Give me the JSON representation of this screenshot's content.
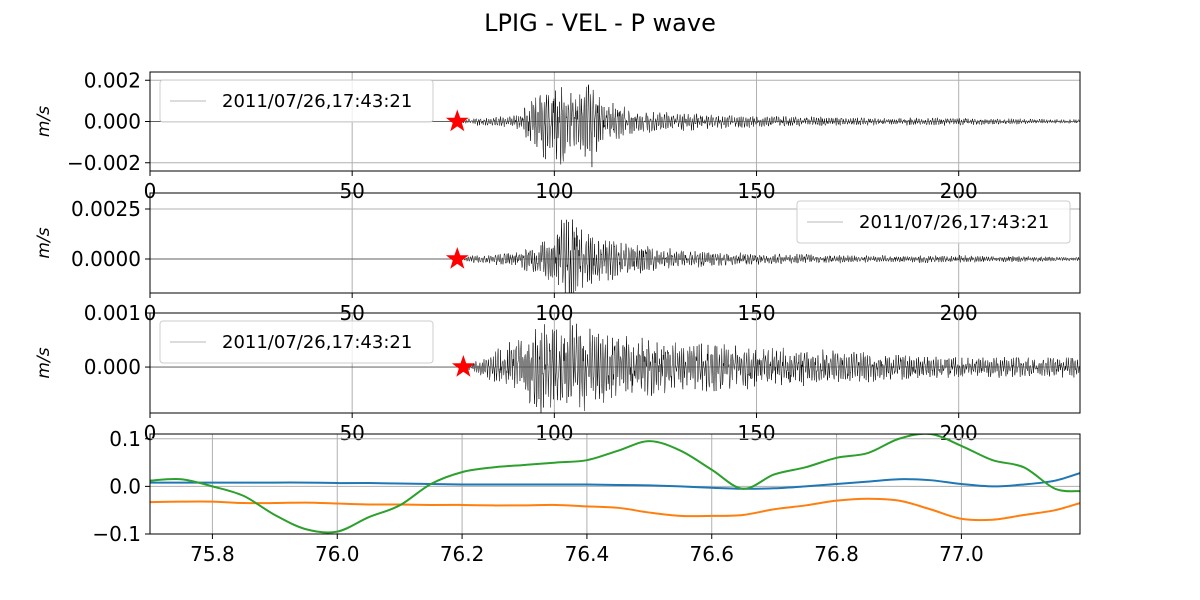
{
  "title": "LPIG - VEL - P wave",
  "colors": {
    "trace": "#000000",
    "marker": "#ff0000",
    "grid": "#b0b0b0",
    "legend_line": "#c8c8c8",
    "series": [
      "#1f77b4",
      "#ff7f0e",
      "#2ca02c"
    ]
  },
  "chart_data": [
    {
      "type": "line",
      "ylabel": "m/s",
      "legend": {
        "label": "2011/07/26,17:43:21",
        "placement": "upper-left"
      },
      "xlim": [
        0,
        230
      ],
      "ylim": [
        -0.0024,
        0.0024
      ],
      "xticks": [
        0,
        50,
        100,
        150,
        200
      ],
      "xtick_labels": [
        "0",
        "50",
        "100",
        "150",
        "200"
      ],
      "yticks": [
        -0.002,
        0,
        0.002
      ],
      "ytick_labels": [
        "−0.002",
        "0.000",
        "0.002"
      ],
      "grid": true,
      "pick": {
        "x": 76.0,
        "y": 0.0
      },
      "trace_envelope": {
        "times": [
          0,
          76,
          80,
          90,
          95,
          98,
          100,
          103,
          106,
          109,
          112,
          120,
          130,
          150,
          175,
          200,
          230
        ],
        "amplitudes": [
          0,
          0,
          0.0002,
          0.0003,
          0.0012,
          0.002,
          0.0024,
          0.0022,
          0.0015,
          0.0024,
          0.0012,
          0.0006,
          0.0005,
          0.0003,
          0.0002,
          0.0002,
          0.0001
        ]
      }
    },
    {
      "type": "line",
      "ylabel": "m/s",
      "legend": {
        "label": "2011/07/26,17:43:21",
        "placement": "upper-right"
      },
      "xlim": [
        0,
        230
      ],
      "ylim": [
        -0.0017,
        0.0033
      ],
      "xticks": [
        0,
        50,
        100,
        150,
        200
      ],
      "xtick_labels": [
        "0",
        "50",
        "100",
        "150",
        "200"
      ],
      "yticks": [
        0,
        0.0025
      ],
      "ytick_labels": [
        "0.0000",
        "0.0025"
      ],
      "grid": true,
      "pick": {
        "x": 76.0,
        "y": 0.0
      },
      "trace_envelope": {
        "times": [
          0,
          76,
          80,
          90,
          97,
          100,
          102,
          104,
          106,
          110,
          118,
          130,
          150,
          175,
          200,
          230
        ],
        "amplitudes": [
          0,
          0,
          0.0002,
          0.0004,
          0.0009,
          0.0015,
          0.0022,
          0.0033,
          0.0016,
          0.0014,
          0.0008,
          0.0005,
          0.0003,
          0.0002,
          0.0002,
          0.0001
        ]
      }
    },
    {
      "type": "line",
      "ylabel": "m/s",
      "legend": {
        "label": "2011/07/26,17:43:21",
        "placement": "upper-left"
      },
      "xlim": [
        0,
        230
      ],
      "ylim": [
        -0.00085,
        0.001
      ],
      "xticks": [
        0,
        50,
        100,
        150,
        200
      ],
      "xtick_labels": [
        "0",
        "50",
        "100",
        "150",
        "200"
      ],
      "yticks": [
        0,
        0.001
      ],
      "ytick_labels": [
        "0.000",
        "0.001"
      ],
      "grid": true,
      "pick": {
        "x": 77.5,
        "y": 0.0
      },
      "trace_envelope": {
        "times": [
          0,
          77,
          80,
          85,
          92,
          96,
          100,
          104,
          108,
          112,
          120,
          130,
          150,
          175,
          200,
          230
        ],
        "amplitudes": [
          0,
          0,
          0.0001,
          0.0003,
          0.0006,
          0.0009,
          0.0008,
          0.001,
          0.0008,
          0.0007,
          0.0006,
          0.0005,
          0.0004,
          0.0003,
          0.0002,
          0.0002
        ]
      }
    },
    {
      "type": "line",
      "xlim": [
        75.7,
        77.19
      ],
      "ylim": [
        -0.1,
        0.11
      ],
      "xticks": [
        75.8,
        76.0,
        76.2,
        76.4,
        76.6,
        76.8,
        77.0
      ],
      "xtick_labels": [
        "75.8",
        "76.0",
        "76.2",
        "76.4",
        "76.6",
        "76.8",
        "77.0"
      ],
      "yticks": [
        -0.1,
        0,
        0.1
      ],
      "ytick_labels": [
        "−0.1",
        "0.0",
        "0.1"
      ],
      "grid": true,
      "x": [
        75.7,
        75.75,
        75.8,
        75.85,
        75.9,
        75.95,
        76.0,
        76.05,
        76.1,
        76.15,
        76.2,
        76.25,
        76.3,
        76.35,
        76.4,
        76.45,
        76.5,
        76.55,
        76.6,
        76.65,
        76.7,
        76.75,
        76.8,
        76.85,
        76.9,
        76.95,
        77.0,
        77.05,
        77.1,
        77.15,
        77.19
      ],
      "series": [
        {
          "values": [
            0.008,
            0.008,
            0.008,
            0.008,
            0.008,
            0.008,
            0.007,
            0.007,
            0.006,
            0.005,
            0.004,
            0.004,
            0.004,
            0.004,
            0.004,
            0.003,
            0.002,
            0.0,
            -0.003,
            -0.005,
            -0.004,
            0.0,
            0.005,
            0.01,
            0.015,
            0.013,
            0.005,
            0.0,
            0.004,
            0.012,
            0.028
          ]
        },
        {
          "values": [
            -0.033,
            -0.032,
            -0.032,
            -0.035,
            -0.035,
            -0.034,
            -0.036,
            -0.038,
            -0.038,
            -0.039,
            -0.039,
            -0.04,
            -0.04,
            -0.039,
            -0.042,
            -0.045,
            -0.055,
            -0.062,
            -0.062,
            -0.06,
            -0.048,
            -0.04,
            -0.03,
            -0.026,
            -0.03,
            -0.048,
            -0.068,
            -0.07,
            -0.06,
            -0.05,
            -0.035
          ]
        },
        {
          "values": [
            0.012,
            0.015,
            0.0,
            -0.02,
            -0.06,
            -0.09,
            -0.095,
            -0.065,
            -0.04,
            0.005,
            0.03,
            0.04,
            0.045,
            0.05,
            0.055,
            0.075,
            0.095,
            0.075,
            0.035,
            -0.005,
            0.025,
            0.04,
            0.06,
            0.07,
            0.1,
            0.11,
            0.085,
            0.055,
            0.04,
            -0.005,
            -0.01
          ]
        }
      ]
    }
  ]
}
